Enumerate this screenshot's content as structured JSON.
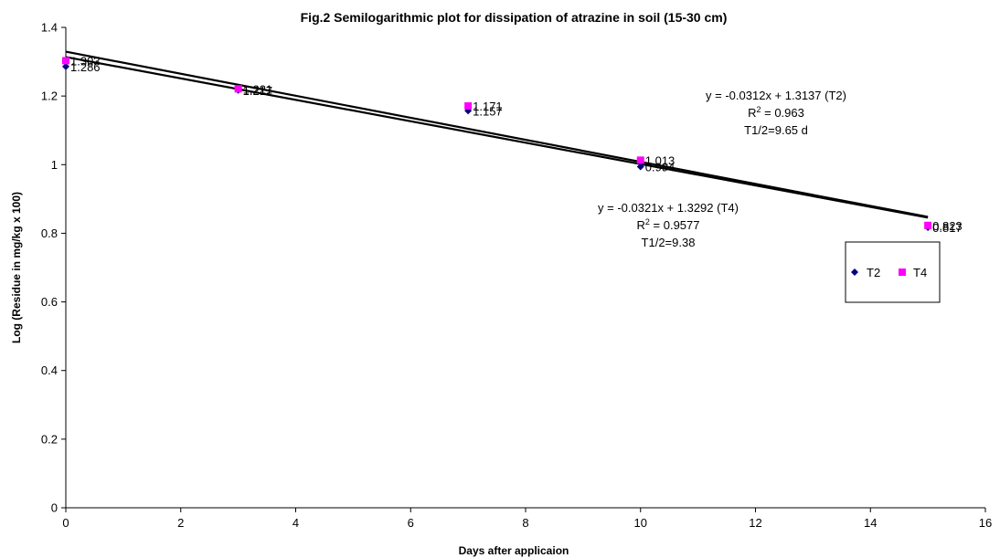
{
  "chart_data": {
    "type": "scatter",
    "title": "Fig.2 Semilogarithmic plot for dissipation of atrazine in soil (15-30 cm)",
    "xlabel": "Days after applicaion",
    "ylabel": "Log (Residue in mg/kg x 100)",
    "xlim": [
      0,
      16
    ],
    "ylim": [
      0,
      1.4
    ],
    "x_ticks": [
      "0",
      "2",
      "4",
      "6",
      "8",
      "10",
      "12",
      "14",
      "16"
    ],
    "y_ticks": [
      "0",
      "0.2",
      "0.4",
      "0.6",
      "0.8",
      "1",
      "1.2",
      "1.4"
    ],
    "grid": false,
    "legend_position": "right",
    "series": [
      {
        "name": "T2",
        "color": "#000080",
        "marker": "diamond",
        "x": [
          0,
          3,
          7,
          10,
          15
        ],
        "y": [
          1.286,
          1.217,
          1.157,
          0.994,
          0.817
        ],
        "labels": [
          "1.286",
          "1.217",
          "1.157",
          "0.994",
          "0.817"
        ],
        "trendline": {
          "slope": -0.0312,
          "intercept": 1.3137
        }
      },
      {
        "name": "T4",
        "color": "#ff00ff",
        "marker": "square",
        "x": [
          0,
          3,
          7,
          10,
          15
        ],
        "y": [
          1.303,
          1.221,
          1.171,
          1.013,
          0.823
        ],
        "labels": [
          "1.303",
          "1.221",
          "1.171",
          "1.013",
          "0.823"
        ],
        "trendline": {
          "slope": -0.0321,
          "intercept": 1.3292
        }
      }
    ],
    "annotations": [
      {
        "lines": [
          "y = -0.0312x + 1.3137 (T2)",
          "R2 = 0.963",
          "T1/2=9.65 d"
        ]
      },
      {
        "lines": [
          "y = -0.0321x + 1.3292 (T4)",
          "R2 = 0.9577",
          "T1/2=9.38"
        ]
      }
    ]
  }
}
